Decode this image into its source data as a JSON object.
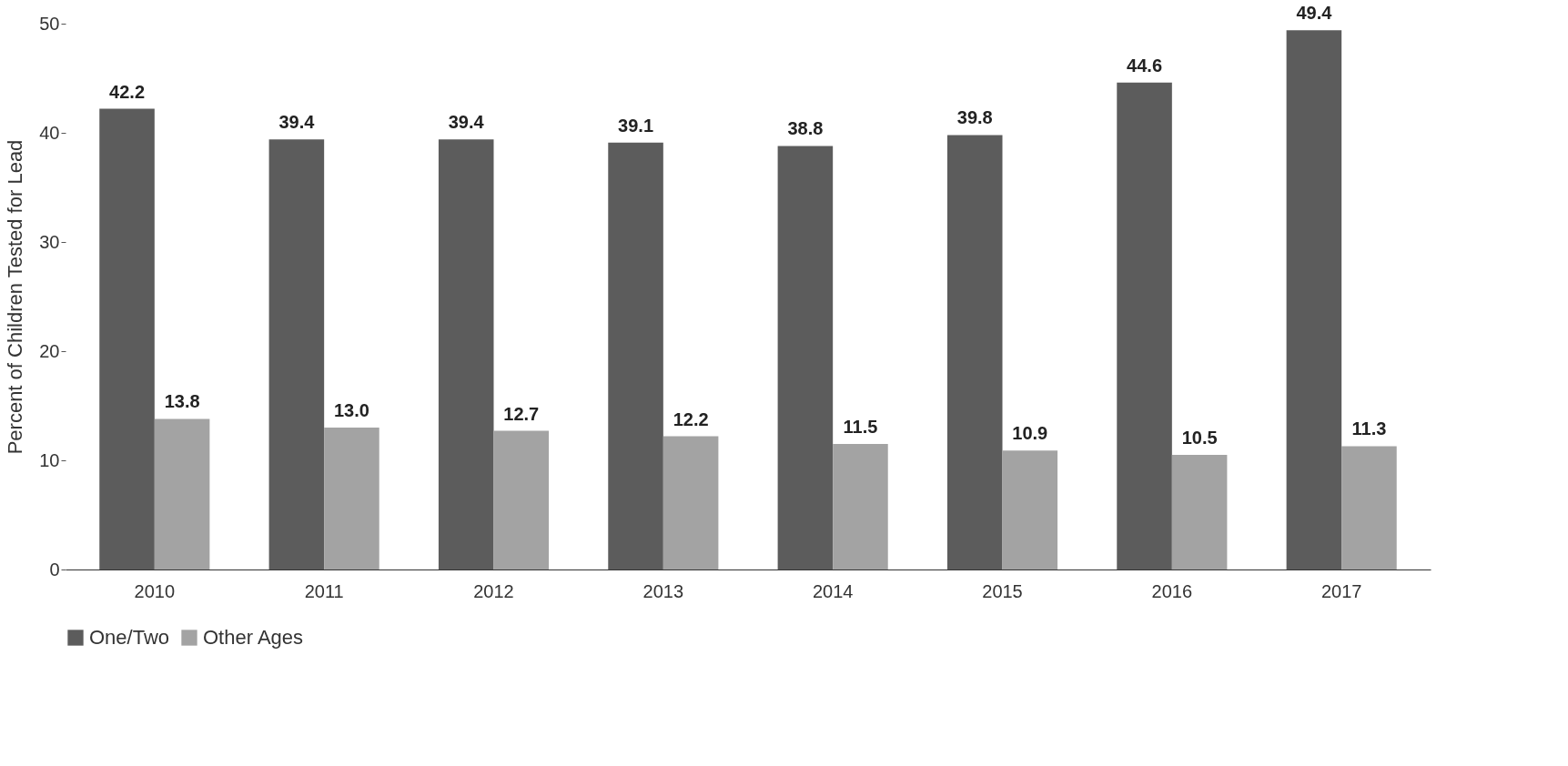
{
  "chart_data": {
    "type": "bar",
    "ylabel": "Percent of Children Tested for Lead",
    "categories": [
      "2010",
      "2011",
      "2012",
      "2013",
      "2014",
      "2015",
      "2016",
      "2017"
    ],
    "series": [
      {
        "name": "One/Two",
        "color": "#5c5c5c",
        "values": [
          42.2,
          39.4,
          39.4,
          39.1,
          38.8,
          39.8,
          44.6,
          49.4
        ],
        "value_labels": [
          "42.2",
          "39.4",
          "39.4",
          "39.1",
          "38.8",
          "39.8",
          "44.6",
          "49.4"
        ]
      },
      {
        "name": "Other Ages",
        "color": "#a3a3a3",
        "values": [
          13.8,
          13.0,
          12.7,
          12.2,
          11.5,
          10.9,
          10.5,
          11.3
        ],
        "value_labels": [
          "13.8",
          "13.0",
          "12.7",
          "12.2",
          "11.5",
          "10.9",
          "10.5",
          "11.3"
        ]
      }
    ],
    "ylim": [
      0,
      50
    ],
    "yticks": [
      0,
      10,
      20,
      30,
      40,
      50
    ],
    "grid": false,
    "legend": "bottom left"
  }
}
